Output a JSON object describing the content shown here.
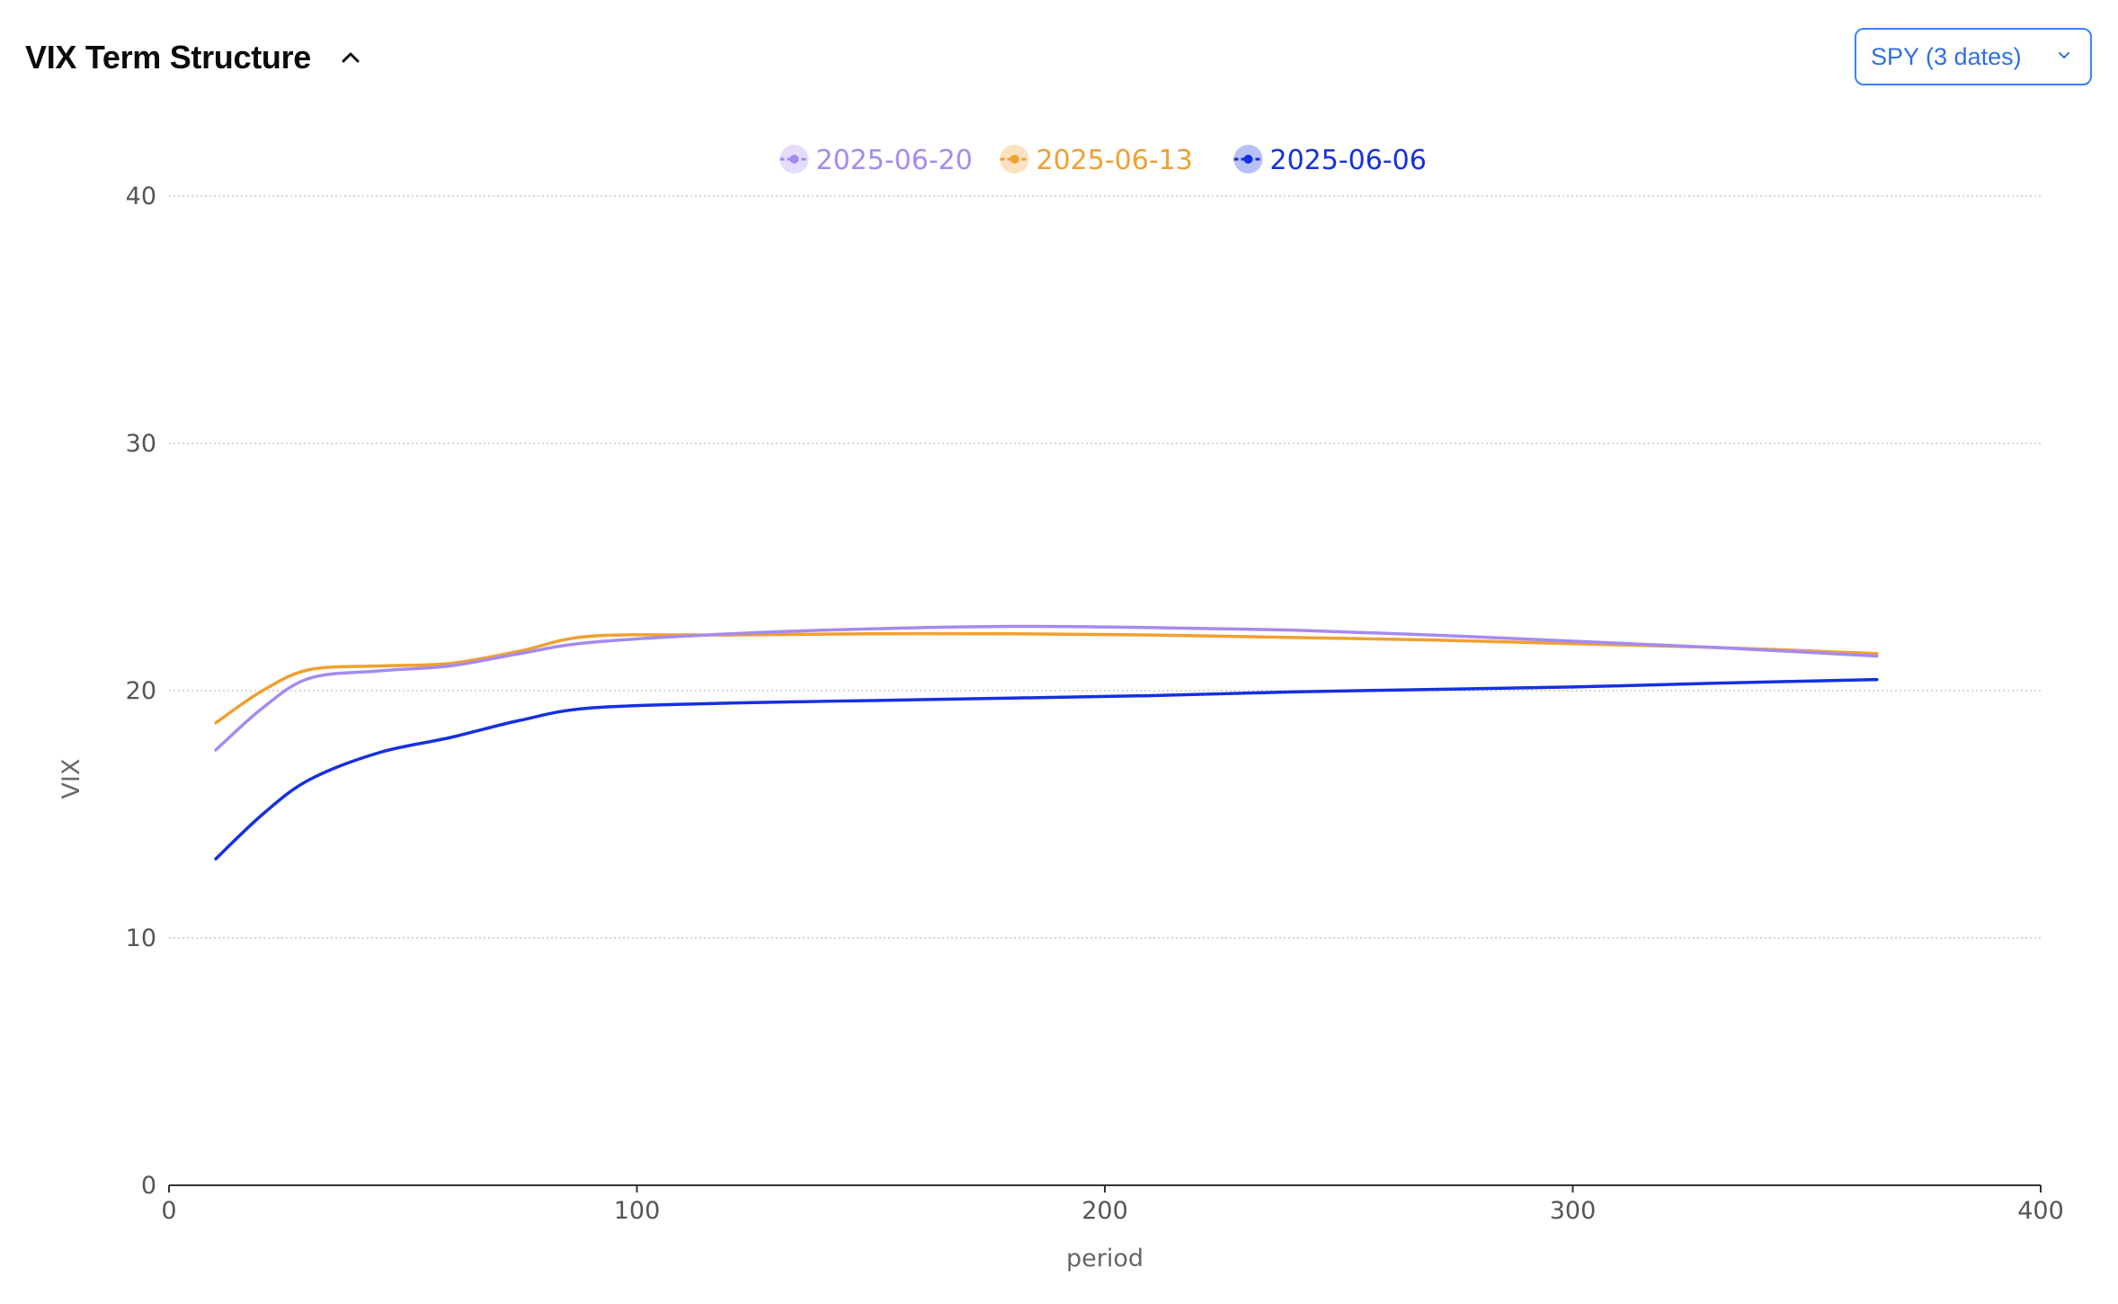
{
  "header": {
    "title": "VIX Term Structure",
    "collapse_icon": "chevron-up-icon",
    "dropdown_label": "SPY (3 dates)",
    "dropdown_icon": "chevron-down-icon"
  },
  "colors": {
    "accent": "#3b82f6",
    "grid": "#c8c8c8",
    "axis": "#333333"
  },
  "chart_data": {
    "type": "line",
    "xlabel": "period",
    "ylabel": "VIX",
    "xlim": [
      0,
      400
    ],
    "ylim": [
      0,
      40
    ],
    "xticks": [
      0,
      100,
      200,
      300,
      400
    ],
    "yticks": [
      0,
      10,
      20,
      30,
      40
    ],
    "grid": "horizontal dotted",
    "legend_position": "top-center",
    "series": [
      {
        "name": "2025-06-20",
        "color": "#a48bf0",
        "x": [
          10,
          20,
          30,
          45,
          60,
          75,
          90,
          120,
          150,
          180,
          210,
          240,
          270,
          300,
          330,
          365
        ],
        "values": [
          17.6,
          19.3,
          20.5,
          20.8,
          21.0,
          21.5,
          21.95,
          22.3,
          22.5,
          22.6,
          22.55,
          22.45,
          22.25,
          22.0,
          21.75,
          21.4
        ]
      },
      {
        "name": "2025-06-13",
        "color": "#f0a030",
        "x": [
          10,
          20,
          30,
          45,
          60,
          75,
          90,
          120,
          150,
          180,
          210,
          240,
          270,
          300,
          330,
          365
        ],
        "values": [
          18.7,
          20.0,
          20.85,
          21.0,
          21.1,
          21.6,
          22.2,
          22.25,
          22.3,
          22.3,
          22.25,
          22.15,
          22.05,
          21.9,
          21.75,
          21.5
        ]
      },
      {
        "name": "2025-06-06",
        "color": "#1530e0",
        "x": [
          10,
          20,
          30,
          45,
          60,
          75,
          90,
          120,
          150,
          180,
          210,
          240,
          270,
          300,
          330,
          365
        ],
        "values": [
          13.2,
          15.0,
          16.4,
          17.5,
          18.1,
          18.8,
          19.3,
          19.5,
          19.6,
          19.7,
          19.8,
          19.95,
          20.05,
          20.15,
          20.3,
          20.45
        ]
      }
    ]
  }
}
